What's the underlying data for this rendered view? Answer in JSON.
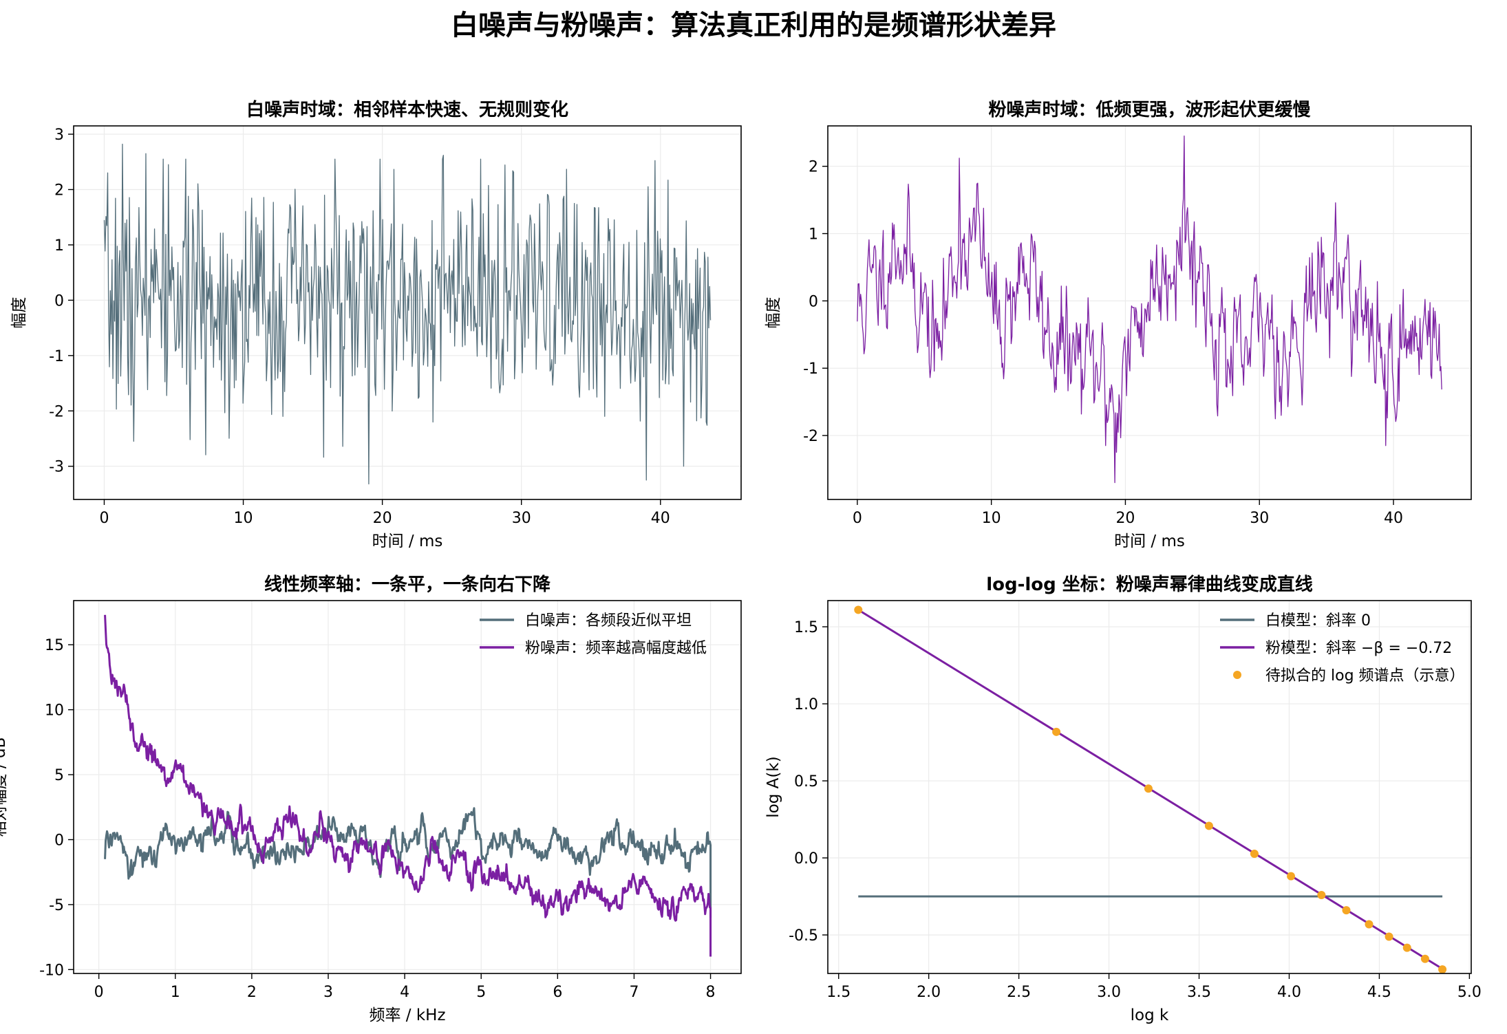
{
  "suptitle": "白噪声与粉噪声：算法真正利用的是频谱形状差异",
  "colors": {
    "white": "#546E7A",
    "pink": "#7B1FA2",
    "points": "#F5A623",
    "grid": "#ebebeb",
    "axes": "#000000"
  },
  "chart_data": [
    {
      "type": "line",
      "title": "白噪声时域：相邻样本快速、无规则变化",
      "xlabel": "时间 / ms",
      "ylabel": "幅度",
      "xlim": [
        -2.2,
        45.8
      ],
      "ylim": [
        -3.6,
        3.15
      ],
      "xticks": [
        0,
        10,
        20,
        30,
        40
      ],
      "xtick_labels": [
        "0",
        "10",
        "20",
        "30",
        "40"
      ],
      "yticks": [
        -3,
        -2,
        -1,
        0,
        1,
        2,
        3
      ],
      "ytick_labels": [
        "-3",
        "-2",
        "-1",
        "0",
        "1",
        "2",
        "3"
      ],
      "series": [
        {
          "color": "#546E7A",
          "stroke_width": 1.3,
          "x_start": 0,
          "x_end": 43.6,
          "n_points": 700,
          "noise": "white",
          "seed": 7,
          "scale": 1.0,
          "extremes": [
            [
              1.3,
              2.82
            ],
            [
              2.1,
              -2.55
            ],
            [
              3.0,
              2.65
            ],
            [
              4.6,
              2.45
            ],
            [
              16.6,
              2.55
            ],
            [
              19.0,
              -3.32
            ],
            [
              24.4,
              2.62
            ],
            [
              39.0,
              -3.25
            ],
            [
              42.6,
              -2.18
            ],
            [
              43.3,
              -2.2
            ]
          ]
        }
      ]
    },
    {
      "type": "line",
      "title": "粉噪声时域：低频更强，波形起伏更缓慢",
      "xlabel": "时间 / ms",
      "ylabel": "幅度",
      "xlim": [
        -2.2,
        45.8
      ],
      "ylim": [
        -2.95,
        2.6
      ],
      "xticks": [
        0,
        10,
        20,
        30,
        40
      ],
      "xtick_labels": [
        "0",
        "10",
        "20",
        "30",
        "40"
      ],
      "yticks": [
        -2,
        -1,
        0,
        1,
        2
      ],
      "ytick_labels": [
        "-2",
        "-1",
        "0",
        "1",
        "2"
      ],
      "series": [
        {
          "color": "#7B1FA2",
          "stroke_width": 1.3,
          "x_start": 0,
          "x_end": 43.6,
          "n_points": 700,
          "noise": "pink",
          "envelope": [
            [
              0,
              -0.2
            ],
            [
              1.5,
              0.3
            ],
            [
              3.0,
              1.0
            ],
            [
              4.5,
              0.2
            ],
            [
              6.0,
              -0.8
            ],
            [
              7.5,
              0.9
            ],
            [
              9.0,
              0.9
            ],
            [
              10.5,
              -0.4
            ],
            [
              12.5,
              0.6
            ],
            [
              14.5,
              -0.6
            ],
            [
              16.5,
              -0.9
            ],
            [
              18.0,
              -1.1
            ],
            [
              19.3,
              -1.5
            ],
            [
              21.0,
              -0.3
            ],
            [
              22.5,
              0.4
            ],
            [
              24.4,
              1.1
            ],
            [
              25.5,
              0.5
            ],
            [
              27.0,
              -0.5
            ],
            [
              28.5,
              -1.1
            ],
            [
              30.5,
              -0.2
            ],
            [
              32.0,
              -0.9
            ],
            [
              33.5,
              0.0
            ],
            [
              35.0,
              0.2
            ],
            [
              36.5,
              0.5
            ],
            [
              38.0,
              -0.5
            ],
            [
              39.5,
              -0.9
            ],
            [
              41.0,
              -0.7
            ],
            [
              42.5,
              -0.2
            ],
            [
              43.6,
              -1.1
            ]
          ],
          "jitter": 0.38,
          "seed": 11,
          "extremes": [
            [
              7.6,
              2.12
            ],
            [
              9.0,
              1.75
            ],
            [
              19.2,
              -2.7
            ],
            [
              24.4,
              2.45
            ],
            [
              18.5,
              -2.15
            ],
            [
              39.4,
              -2.15
            ]
          ]
        }
      ]
    },
    {
      "type": "line",
      "title": "线性频率轴：一条平，一条向右下降",
      "xlabel": "频率 / kHz",
      "ylabel": "相对幅度 / dB",
      "xlim": [
        -0.33,
        8.4
      ],
      "ylim": [
        -10.3,
        18.4
      ],
      "xticks": [
        0,
        1,
        2,
        3,
        4,
        5,
        6,
        7,
        8
      ],
      "xtick_labels": [
        "0",
        "1",
        "2",
        "3",
        "4",
        "5",
        "6",
        "7",
        "8"
      ],
      "yticks": [
        -10,
        -5,
        0,
        5,
        10,
        15
      ],
      "ytick_labels": [
        "-10",
        "-5",
        "0",
        "5",
        "10",
        "15"
      ],
      "legend": [
        "白噪声：各频段近似平坦",
        "粉噪声：频率越高幅度越低"
      ],
      "legend_loc": "upper right",
      "series": [
        {
          "name": "白噪声：各频段近似平坦",
          "color": "#546E7A",
          "stroke_width": 3,
          "x_start": 0.08,
          "x_end": 8.0,
          "n_points": 900,
          "model": "flat",
          "ripple": 0.9,
          "seed": 21,
          "start_value": -1.5,
          "end_value": -6.0
        },
        {
          "name": "粉噪声：频率越高幅度越低",
          "color": "#7B1FA2",
          "stroke_width": 3,
          "x_start": 0.08,
          "x_end": 8.0,
          "n_points": 900,
          "model": "pink_db",
          "ripple": 0.85,
          "seed": 33,
          "start_value": 17.3,
          "end_value": -9.0
        }
      ]
    },
    {
      "type": "line",
      "title": "log-log 坐标：粉噪声幂律曲线变成直线",
      "xlabel": "log k",
      "ylabel": "log A(k)",
      "xlim": [
        1.44,
        5.01
      ],
      "ylim": [
        -0.75,
        1.67
      ],
      "xticks": [
        1.5,
        2.0,
        2.5,
        3.0,
        3.5,
        4.0,
        4.5,
        5.0
      ],
      "xtick_labels": [
        "1.5",
        "2.0",
        "2.5",
        "3.0",
        "3.5",
        "4.0",
        "4.5",
        "5.0"
      ],
      "yticks": [
        -0.5,
        0.0,
        0.5,
        1.0,
        1.5
      ],
      "ytick_labels": [
        "-0.5",
        "0.0",
        "0.5",
        "1.0",
        "1.5"
      ],
      "legend": [
        "白模型：斜率 0",
        "粉模型：斜率 −β = −0.72",
        "待拟合的 log 频谱点（示意）"
      ],
      "legend_loc": "upper right",
      "series": [
        {
          "name": "白模型：斜率 0",
          "color": "#546E7A",
          "stroke_width": 3,
          "points": [
            [
              1.609,
              -0.25
            ],
            [
              4.85,
              -0.25
            ]
          ]
        },
        {
          "name": "粉模型：斜率 −β = −0.72",
          "color": "#7B1FA2",
          "stroke_width": 3,
          "points": [
            [
              1.609,
              1.61
            ],
            [
              4.85,
              -0.72
            ]
          ]
        }
      ],
      "scatter": {
        "name": "待拟合的 log 频谱点（示意）",
        "color": "#F5A623",
        "x": [
          1.609,
          2.708,
          3.219,
          3.555,
          3.807,
          4.01,
          4.179,
          4.317,
          4.443,
          4.554,
          4.654,
          4.754,
          4.85
        ],
        "y": [
          1.61,
          0.818,
          0.45,
          0.208,
          0.027,
          -0.119,
          -0.241,
          -0.34,
          -0.431,
          -0.511,
          -0.583,
          -0.655,
          -0.724
        ]
      }
    }
  ]
}
